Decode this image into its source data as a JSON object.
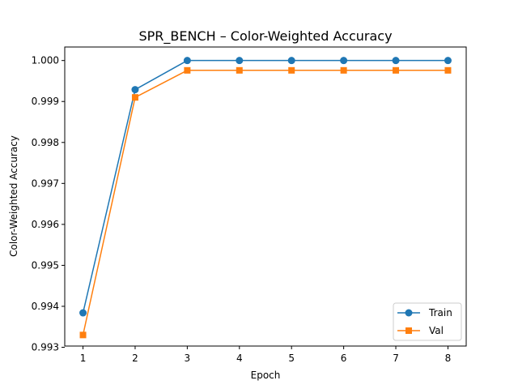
{
  "chart_data": {
    "type": "line",
    "title": "SPR_BENCH – Color-Weighted Accuracy",
    "xlabel": "Epoch",
    "ylabel": "Color-Weighted Accuracy",
    "x": [
      1,
      2,
      3,
      4,
      5,
      6,
      7,
      8
    ],
    "xticks": [
      "1",
      "2",
      "3",
      "4",
      "5",
      "6",
      "7",
      "8"
    ],
    "yticks": [
      "0.993",
      "0.994",
      "0.995",
      "0.996",
      "0.997",
      "0.998",
      "0.999",
      "1.000"
    ],
    "xlim": [
      0.65,
      8.35
    ],
    "ylim": [
      0.99303,
      1.00033
    ],
    "grid": false,
    "legend_position": "lower right",
    "series": [
      {
        "name": "Train",
        "color": "#1f77b4",
        "marker": "circle",
        "values": [
          0.99384,
          0.99929,
          1.0,
          1.0,
          1.0,
          1.0,
          1.0,
          1.0
        ]
      },
      {
        "name": "Val",
        "color": "#ff7f0e",
        "marker": "square",
        "values": [
          0.9933,
          0.9991,
          0.99976,
          0.99976,
          0.99976,
          0.99976,
          0.99976,
          0.99976
        ]
      }
    ]
  }
}
